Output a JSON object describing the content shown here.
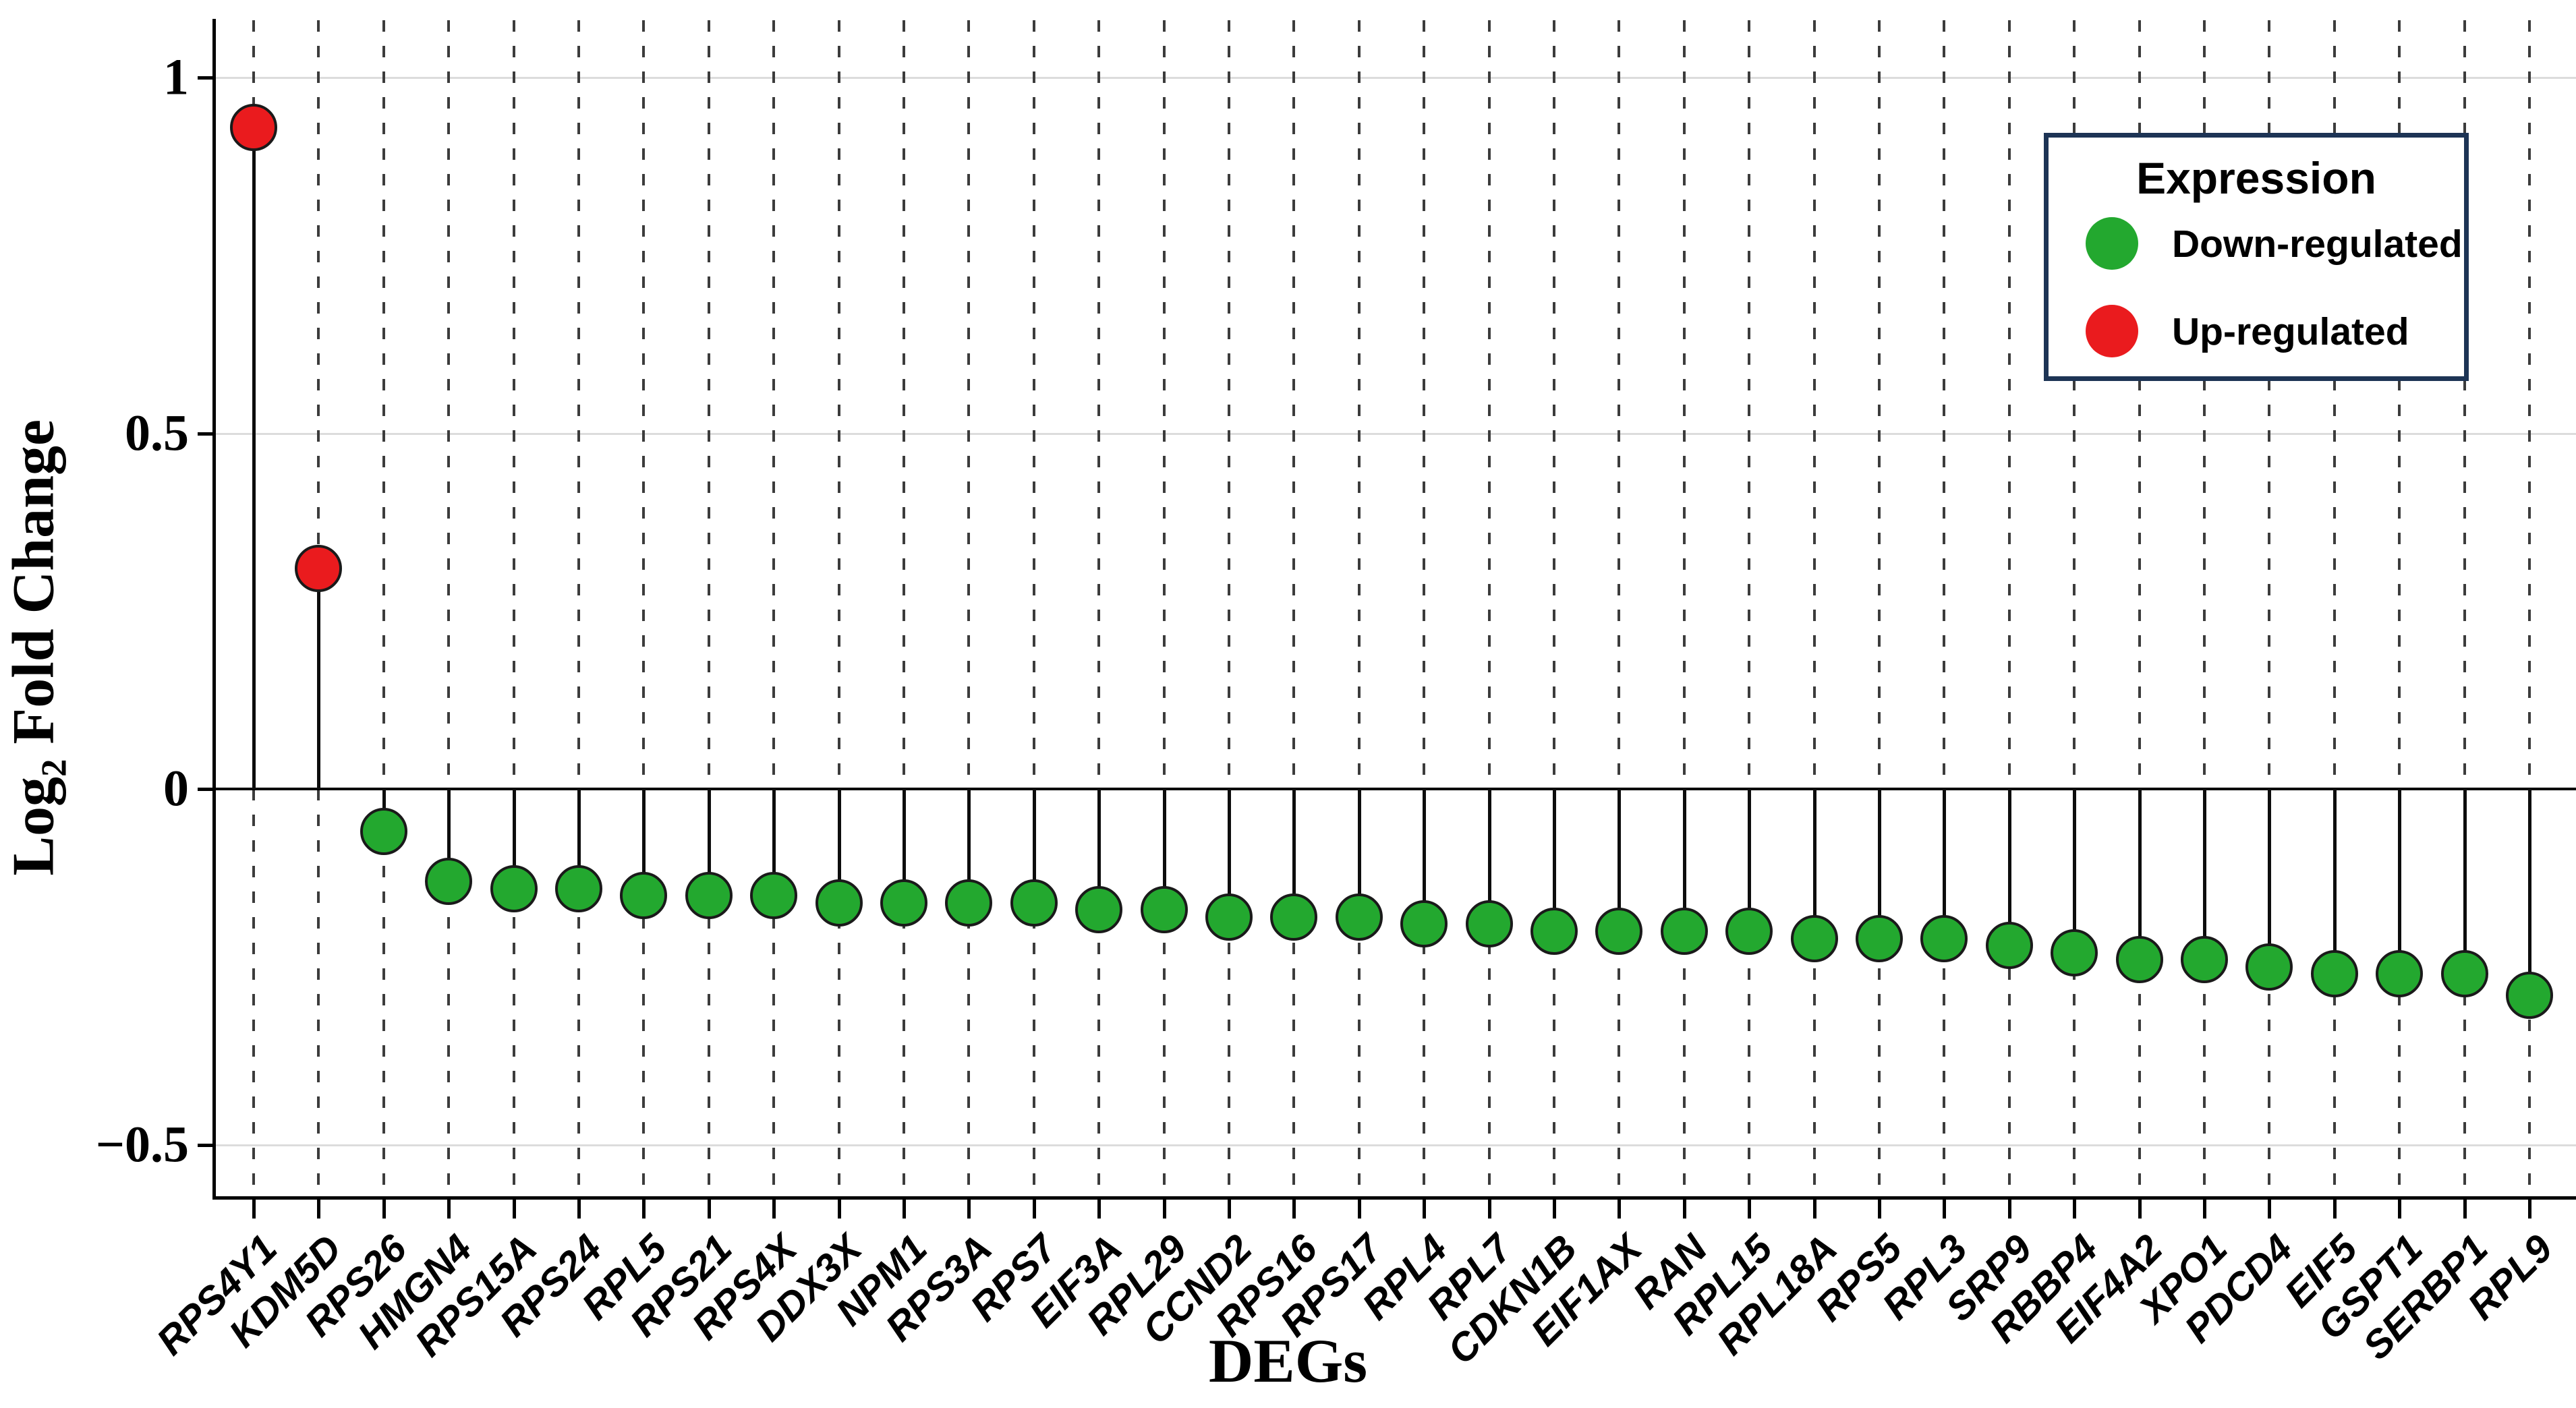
{
  "chart_data": {
    "type": "scatter",
    "style": "lollipop",
    "xlabel": "DEGs",
    "ylabel_main": "Log",
    "ylabel_sub": "2",
    "ylabel_rest": " Fold Change",
    "ylim": [
      -0.57,
      1.07
    ],
    "grid": "dashed-vertical-per-category",
    "y_ticks": [
      {
        "label": "1",
        "value": 1.0
      },
      {
        "label": "0.5",
        "value": 0.5
      },
      {
        "label": "0",
        "value": 0.0
      },
      {
        "label": "−0.5",
        "value": -0.5
      }
    ],
    "categories": [
      "RPS4Y1",
      "KDM5D",
      "RPS26",
      "HMGN4",
      "RPS15A",
      "RPS24",
      "RPL5",
      "RPS21",
      "RPS4X",
      "DDX3X",
      "NPM1",
      "RPS3A",
      "RPS7",
      "EIF3A",
      "RPL29",
      "CCND2",
      "RPS16",
      "RPS17",
      "RPL4",
      "RPL7",
      "CDKN1B",
      "EIF1AX",
      "RAN",
      "RPL15",
      "RPL18A",
      "RPS5",
      "RPL3",
      "SRP9",
      "RBBP4",
      "EIF4A2",
      "XPO1",
      "PDCD4",
      "EIF5",
      "GSPT1",
      "SERBP1",
      "RPL9"
    ],
    "points": [
      {
        "gene": "RPS4Y1",
        "log2fc": 0.93,
        "expression": "up"
      },
      {
        "gene": "KDM5D",
        "log2fc": 0.31,
        "expression": "up"
      },
      {
        "gene": "RPS26",
        "log2fc": -0.06,
        "expression": "down"
      },
      {
        "gene": "HMGN4",
        "log2fc": -0.13,
        "expression": "down"
      },
      {
        "gene": "RPS15A",
        "log2fc": -0.14,
        "expression": "down"
      },
      {
        "gene": "RPS24",
        "log2fc": -0.14,
        "expression": "down"
      },
      {
        "gene": "RPL5",
        "log2fc": -0.15,
        "expression": "down"
      },
      {
        "gene": "RPS21",
        "log2fc": -0.15,
        "expression": "down"
      },
      {
        "gene": "RPS4X",
        "log2fc": -0.15,
        "expression": "down"
      },
      {
        "gene": "DDX3X",
        "log2fc": -0.16,
        "expression": "down"
      },
      {
        "gene": "NPM1",
        "log2fc": -0.16,
        "expression": "down"
      },
      {
        "gene": "RPS3A",
        "log2fc": -0.16,
        "expression": "down"
      },
      {
        "gene": "RPS7",
        "log2fc": -0.16,
        "expression": "down"
      },
      {
        "gene": "EIF3A",
        "log2fc": -0.17,
        "expression": "down"
      },
      {
        "gene": "RPL29",
        "log2fc": -0.17,
        "expression": "down"
      },
      {
        "gene": "CCND2",
        "log2fc": -0.18,
        "expression": "down"
      },
      {
        "gene": "RPS16",
        "log2fc": -0.18,
        "expression": "down"
      },
      {
        "gene": "RPS17",
        "log2fc": -0.18,
        "expression": "down"
      },
      {
        "gene": "RPL4",
        "log2fc": -0.19,
        "expression": "down"
      },
      {
        "gene": "RPL7",
        "log2fc": -0.19,
        "expression": "down"
      },
      {
        "gene": "CDKN1B",
        "log2fc": -0.2,
        "expression": "down"
      },
      {
        "gene": "EIF1AX",
        "log2fc": -0.2,
        "expression": "down"
      },
      {
        "gene": "RAN",
        "log2fc": -0.2,
        "expression": "down"
      },
      {
        "gene": "RPL15",
        "log2fc": -0.2,
        "expression": "down"
      },
      {
        "gene": "RPL18A",
        "log2fc": -0.21,
        "expression": "down"
      },
      {
        "gene": "RPS5",
        "log2fc": -0.21,
        "expression": "down"
      },
      {
        "gene": "RPL3",
        "log2fc": -0.21,
        "expression": "down"
      },
      {
        "gene": "SRP9",
        "log2fc": -0.22,
        "expression": "down"
      },
      {
        "gene": "RBBP4",
        "log2fc": -0.23,
        "expression": "down"
      },
      {
        "gene": "EIF4A2",
        "log2fc": -0.24,
        "expression": "down"
      },
      {
        "gene": "XPO1",
        "log2fc": -0.24,
        "expression": "down"
      },
      {
        "gene": "PDCD4",
        "log2fc": -0.25,
        "expression": "down"
      },
      {
        "gene": "EIF5",
        "log2fc": -0.26,
        "expression": "down"
      },
      {
        "gene": "GSPT1",
        "log2fc": -0.26,
        "expression": "down"
      },
      {
        "gene": "SERBP1",
        "log2fc": -0.26,
        "expression": "down"
      },
      {
        "gene": "RPL9",
        "log2fc": -0.29,
        "expression": "down"
      }
    ],
    "legend": {
      "title": "Expression",
      "position": "top-right",
      "items": [
        {
          "label": "Down-regulated",
          "color": "#23a82f"
        },
        {
          "label": "Up-regulated",
          "color": "#ea1b1e"
        }
      ]
    },
    "colors": {
      "up": "#ea1b1e",
      "down": "#23a82f",
      "stem": "#0d0d0d",
      "legend_border": "#1d3455"
    }
  }
}
